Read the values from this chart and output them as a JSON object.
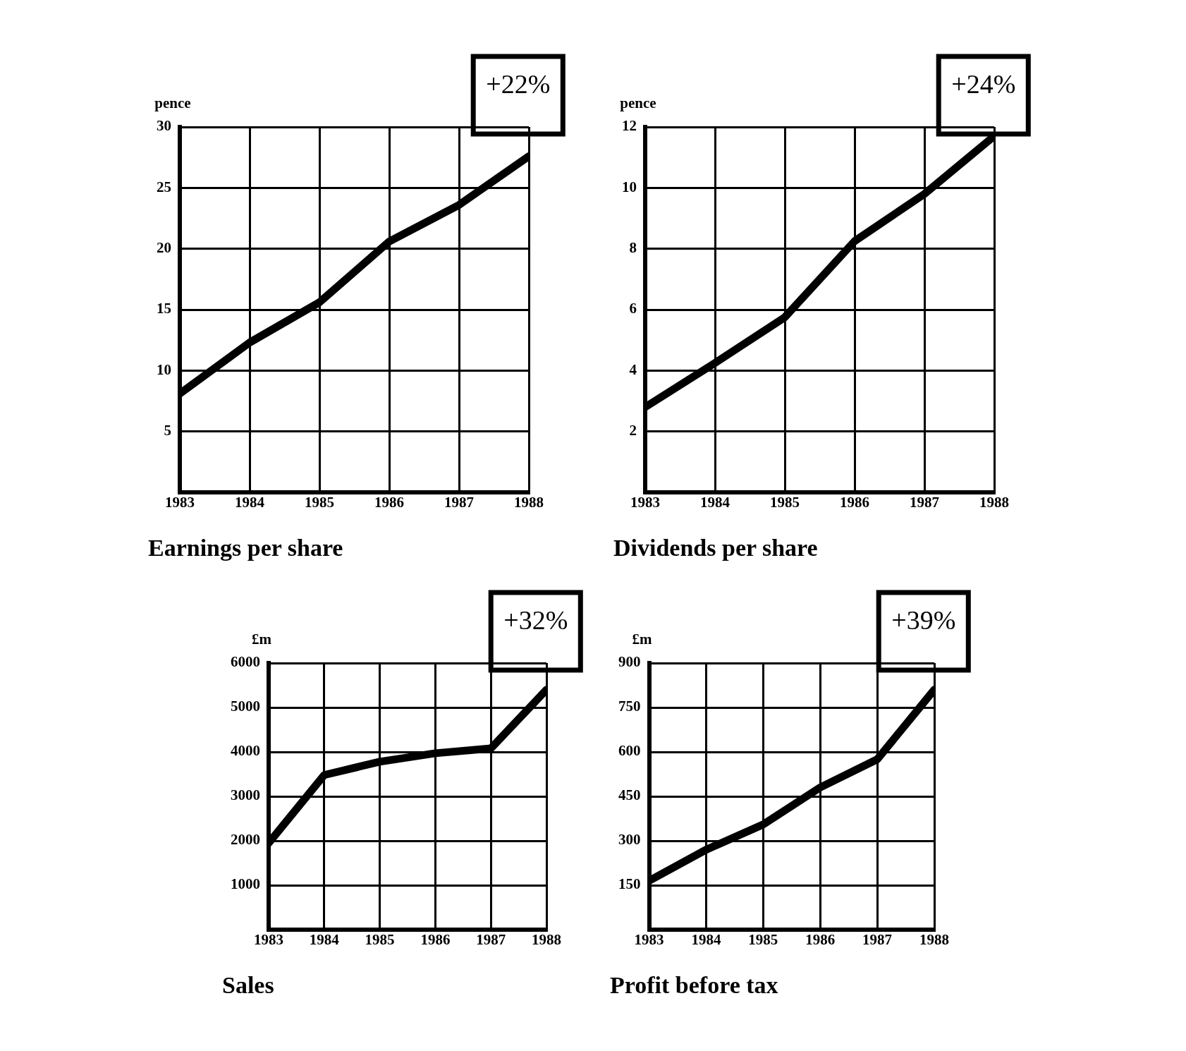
{
  "chart_data": [
    {
      "type": "line",
      "title": "Earnings per share",
      "ylabel": "pence",
      "x": [
        1983,
        1984,
        1985,
        1986,
        1987,
        1988
      ],
      "values": [
        8.1,
        12.3,
        15.6,
        20.6,
        23.6,
        27.6
      ],
      "color": "#000000",
      "xlim": [
        1983,
        1988
      ],
      "xticks": [
        1983,
        1984,
        1985,
        1986,
        1987,
        1988
      ],
      "ylim": [
        0,
        30
      ],
      "yticks": [
        5,
        10,
        15,
        20,
        25,
        30
      ],
      "grid": true,
      "marker": "none",
      "annotations": [
        "+22%"
      ]
    },
    {
      "type": "line",
      "title": "Dividends per share",
      "ylabel": "pence",
      "x": [
        1983,
        1984,
        1985,
        1986,
        1987,
        1988
      ],
      "values": [
        2.8,
        4.25,
        5.75,
        8.25,
        9.8,
        11.7
      ],
      "color": "#000000",
      "xlim": [
        1983,
        1988
      ],
      "xticks": [
        1983,
        1984,
        1985,
        1986,
        1987,
        1988
      ],
      "ylim": [
        0,
        12
      ],
      "yticks": [
        2,
        4,
        6,
        8,
        10,
        12
      ],
      "grid": true,
      "marker": "none",
      "annotations": [
        "+24%"
      ]
    },
    {
      "type": "line",
      "title": "Sales",
      "ylabel": "£m",
      "x": [
        1983,
        1984,
        1985,
        1986,
        1987,
        1988
      ],
      "values": [
        1950,
        3480,
        3780,
        3970,
        4080,
        5400
      ],
      "color": "#000000",
      "xlim": [
        1983,
        1988
      ],
      "xticks": [
        1983,
        1984,
        1985,
        1986,
        1987,
        1988
      ],
      "ylim": [
        0,
        6000
      ],
      "yticks": [
        1000,
        2000,
        3000,
        4000,
        5000,
        6000
      ],
      "grid": true,
      "marker": "none",
      "annotations": [
        "+32%"
      ]
    },
    {
      "type": "line",
      "title": "Profit before tax",
      "ylabel": "£m",
      "x": [
        1983,
        1984,
        1985,
        1986,
        1987,
        1988
      ],
      "values": [
        165,
        270,
        355,
        480,
        575,
        810
      ],
      "color": "#000000",
      "xlim": [
        1983,
        1988
      ],
      "xticks": [
        1983,
        1984,
        1985,
        1986,
        1987,
        1988
      ],
      "ylim": [
        0,
        900
      ],
      "yticks": [
        150,
        300,
        450,
        600,
        750,
        900
      ],
      "grid": true,
      "marker": "none",
      "annotations": [
        "+39%"
      ]
    }
  ]
}
